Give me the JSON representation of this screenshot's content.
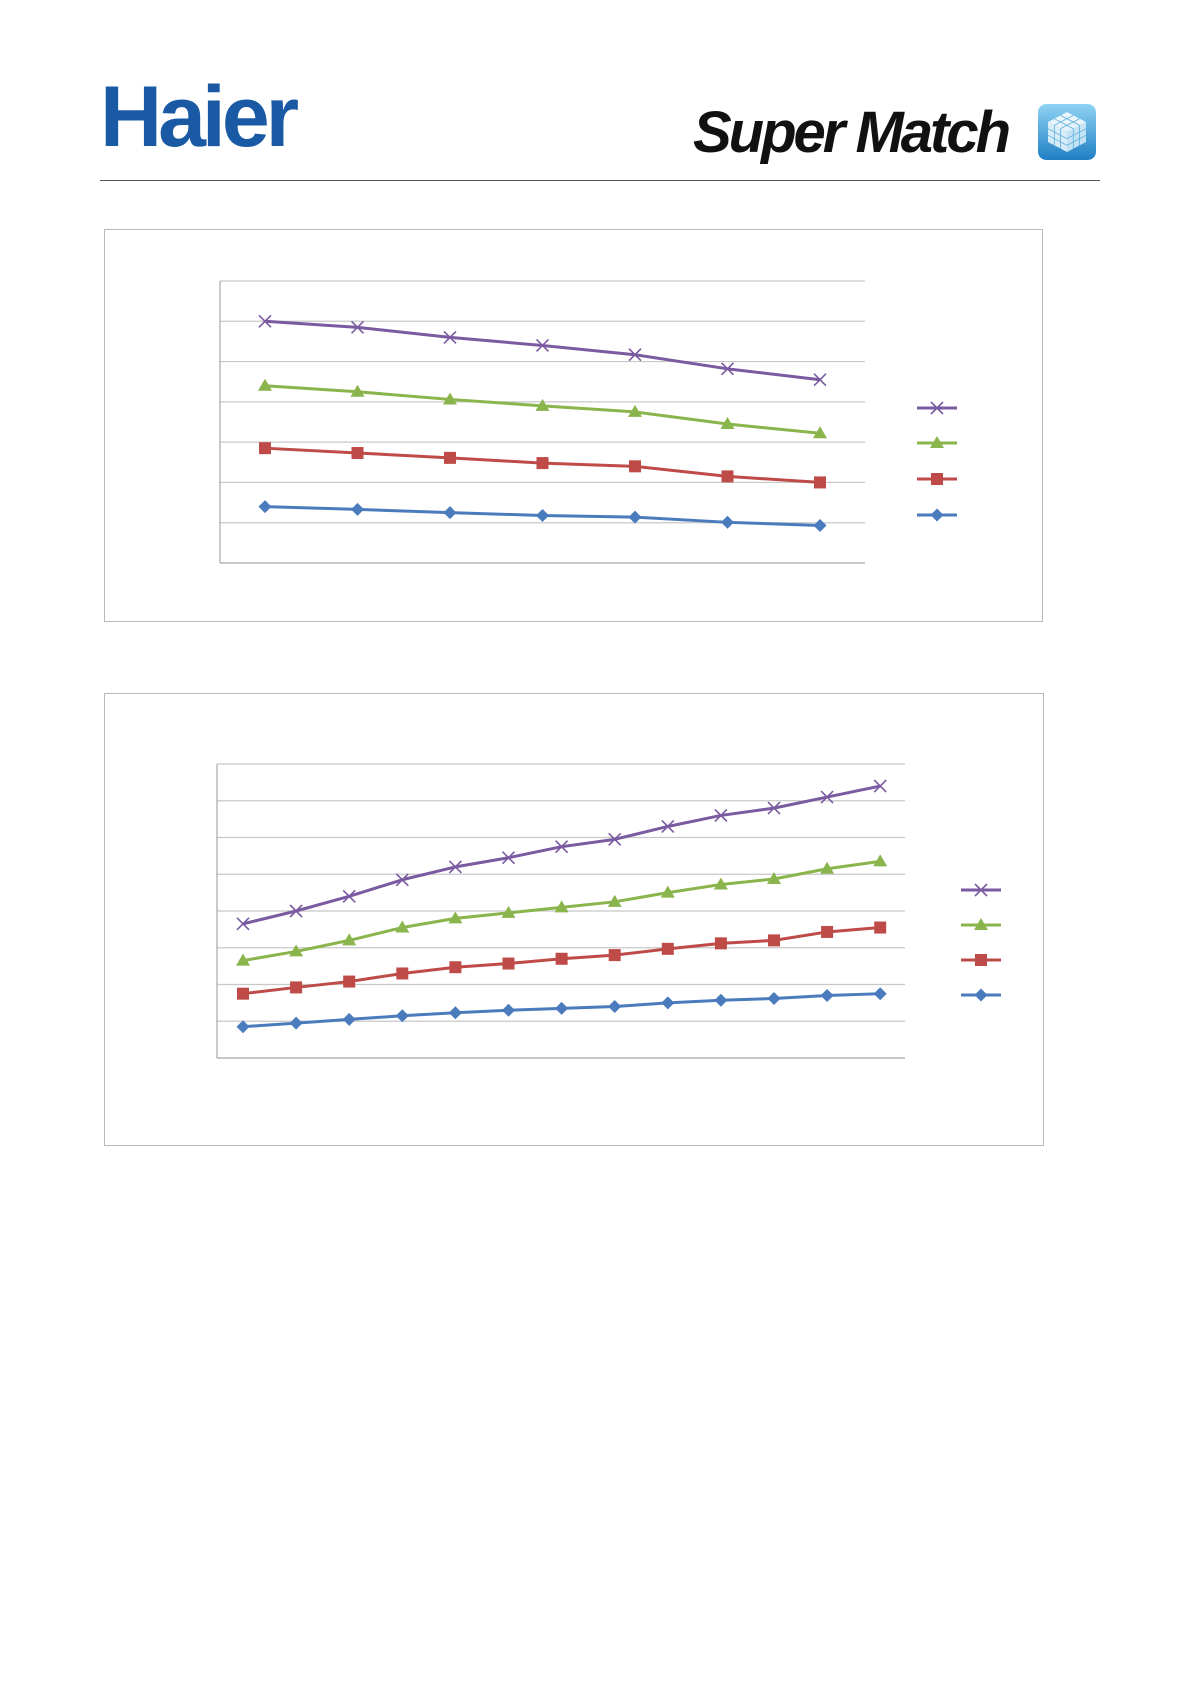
{
  "header": {
    "brand_logo_text": "Haier",
    "brand_color": "#1a5aa5",
    "product_logo_text": "Super Match",
    "product_icon": "cube-grid-icon",
    "product_icon_color": "#2e9fd8"
  },
  "chart_data": [
    {
      "type": "line",
      "title": "",
      "xlabel": "",
      "ylabel": "",
      "grid": true,
      "legend": "right",
      "ylim": [
        0,
        7
      ],
      "x": [
        1,
        2,
        3,
        4,
        5,
        6,
        7
      ],
      "series": [
        {
          "color": "#7a5aa0",
          "marker": "x",
          "values": [
            6.0,
            5.85,
            5.6,
            5.4,
            5.17,
            4.82,
            4.55
          ]
        },
        {
          "color": "#8ab44c",
          "marker": "triangle",
          "values": [
            4.4,
            4.25,
            4.06,
            3.9,
            3.75,
            3.45,
            3.22
          ]
        },
        {
          "color": "#bf4b48",
          "marker": "square",
          "values": [
            2.85,
            2.73,
            2.61,
            2.48,
            2.4,
            2.15,
            2.0
          ]
        },
        {
          "color": "#4a7bbd",
          "marker": "diamond",
          "values": [
            1.4,
            1.33,
            1.25,
            1.18,
            1.14,
            1.01,
            0.93
          ]
        }
      ]
    },
    {
      "type": "line",
      "title": "",
      "xlabel": "",
      "ylabel": "",
      "grid": true,
      "legend": "right",
      "ylim": [
        0,
        8
      ],
      "x": [
        1,
        2,
        3,
        4,
        5,
        6,
        7,
        8,
        9,
        10,
        11,
        12,
        13
      ],
      "series": [
        {
          "color": "#7a5aa0",
          "marker": "x",
          "values": [
            3.65,
            4.0,
            4.4,
            4.85,
            5.2,
            5.45,
            5.75,
            5.95,
            6.3,
            6.6,
            6.8,
            7.1,
            7.4
          ]
        },
        {
          "color": "#8ab44c",
          "marker": "triangle",
          "values": [
            2.65,
            2.9,
            3.2,
            3.55,
            3.8,
            3.95,
            4.1,
            4.25,
            4.5,
            4.72,
            4.87,
            5.15,
            5.35
          ]
        },
        {
          "color": "#bf4b48",
          "marker": "square",
          "values": [
            1.75,
            1.92,
            2.08,
            2.3,
            2.47,
            2.57,
            2.7,
            2.8,
            2.97,
            3.12,
            3.2,
            3.43,
            3.55
          ]
        },
        {
          "color": "#4a7bbd",
          "marker": "diamond",
          "values": [
            0.85,
            0.95,
            1.05,
            1.15,
            1.23,
            1.3,
            1.35,
            1.4,
            1.5,
            1.57,
            1.62,
            1.7,
            1.75
          ]
        }
      ]
    }
  ]
}
